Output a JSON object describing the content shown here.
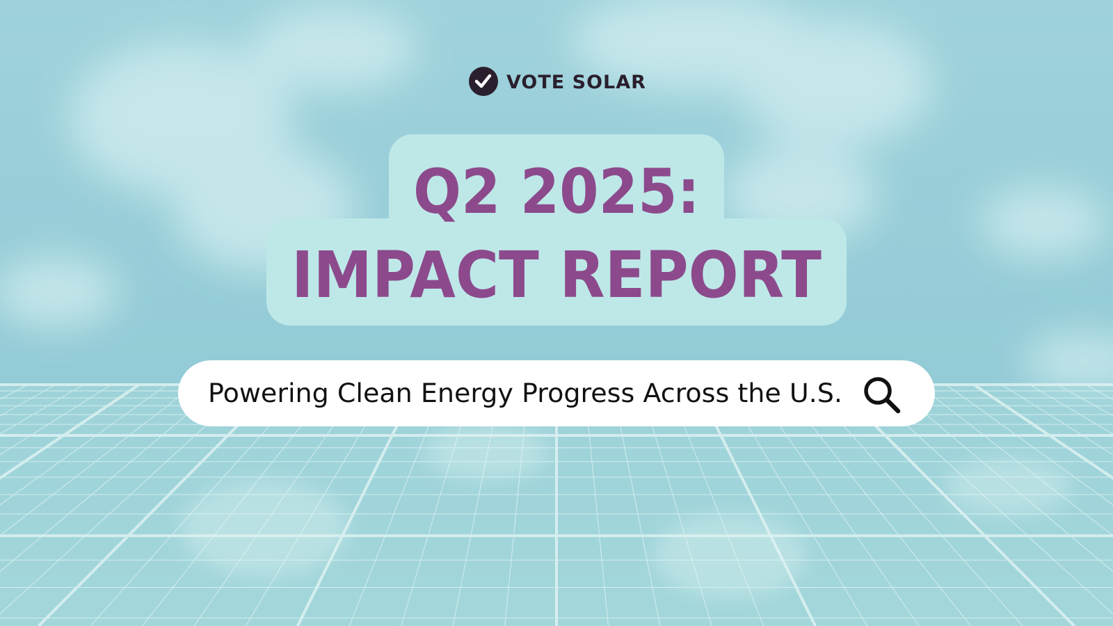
{
  "brand": "VOTE SOLAR",
  "title": {
    "line1": "Q2 2025:",
    "line2": "IMPACT REPORT"
  },
  "search": {
    "text": "Powering Clean Energy Progress Across the U.S."
  }
}
